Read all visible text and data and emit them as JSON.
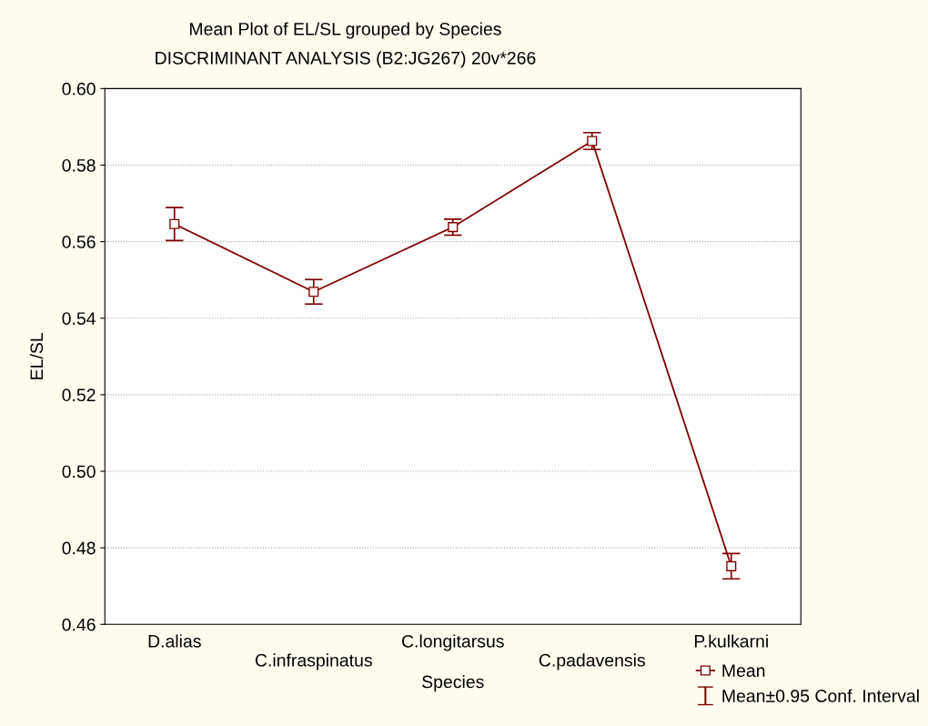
{
  "chart_data": {
    "type": "line",
    "title": "Mean Plot of EL/SL grouped by Species",
    "subtitle": "DISCRIMINANT ANALYSIS (B2:JG267) 20v*266",
    "xlabel": "Species",
    "ylabel": "EL/SL",
    "categories": [
      "D.alias",
      "C.infraspinatus",
      "C.longitarsus",
      "C.padavensis",
      "P.kulkarni"
    ],
    "series": [
      {
        "name": "Mean",
        "color": "#800000",
        "values": [
          0.5646,
          0.5469,
          0.5638,
          0.5863,
          0.4752
        ],
        "errors": [
          0.0043,
          0.0032,
          0.0021,
          0.0022,
          0.0033
        ]
      }
    ],
    "annotations": [
      "Mean±0.95 Conf. Interval"
    ],
    "ylim": [
      0.46,
      0.6
    ],
    "yticks": [
      0.46,
      0.48,
      {
        "value": 0.5,
        "label": "0.50"
      },
      0.52,
      0.54,
      0.56,
      0.58,
      {
        "value": 0.6,
        "label": "0.60"
      }
    ],
    "grid": "y",
    "legend": "bottom right",
    "marker": "square",
    "line_style": "solid"
  }
}
